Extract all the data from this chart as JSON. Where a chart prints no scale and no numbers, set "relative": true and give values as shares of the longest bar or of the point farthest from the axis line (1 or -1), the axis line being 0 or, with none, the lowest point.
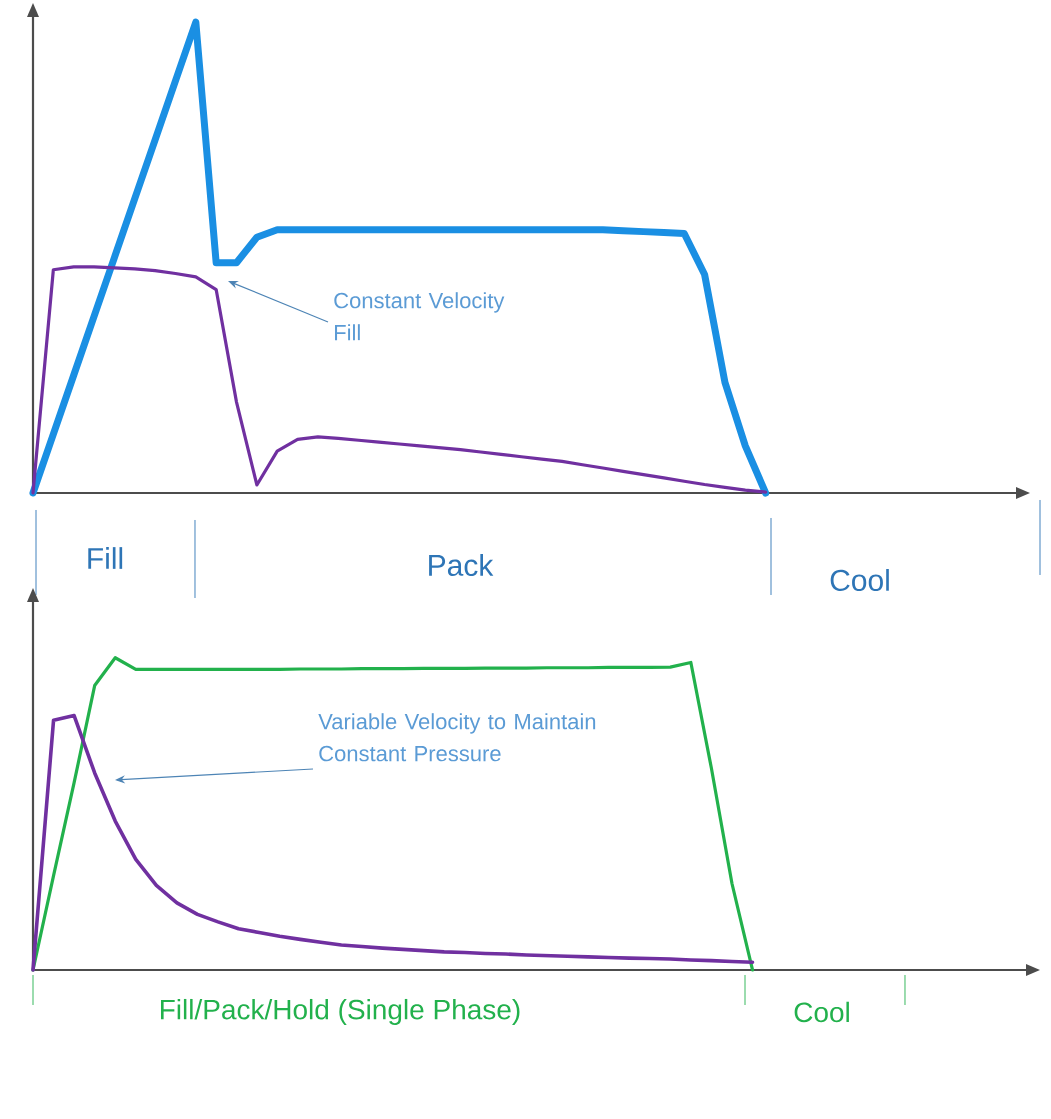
{
  "chart_data": [
    {
      "type": "line",
      "relative": true,
      "categories": [
        null,
        null,
        null,
        null,
        null,
        null,
        null,
        null,
        null,
        null,
        null,
        null,
        null,
        null,
        null,
        null,
        null,
        null,
        null,
        null,
        null,
        null,
        null,
        null,
        null,
        null,
        null,
        null,
        null,
        null,
        null,
        null,
        null,
        null,
        null,
        null,
        null,
        null,
        null,
        null,
        null,
        null,
        null,
        null,
        null,
        null,
        null,
        null,
        null
      ],
      "series": [
        {
          "color": "#1a8fe3",
          "values": [
            0,
            0.125,
            0.25,
            0.375,
            0.5,
            0.625,
            0.75,
            0.875,
            1.0,
            0.489,
            0.489,
            0.543,
            0.559,
            0.559,
            0.559,
            0.559,
            0.559,
            0.559,
            0.559,
            0.559,
            0.559,
            0.559,
            0.559,
            0.559,
            0.559,
            0.559,
            0.559,
            0.559,
            0.559,
            0.557,
            0.555,
            0.553,
            0.551,
            0.464,
            0.235,
            0.1,
            0,
            null,
            null,
            null,
            null,
            null,
            null,
            null,
            null,
            null,
            null,
            null,
            null
          ]
        },
        {
          "color": "#7030a0",
          "values": [
            0,
            0.474,
            0.48,
            0.48,
            0.478,
            0.476,
            0.472,
            0.466,
            0.459,
            0.432,
            0.193,
            0.017,
            0.089,
            0.114,
            0.119,
            0.116,
            0.112,
            0.108,
            0.104,
            0.1,
            0.096,
            0.092,
            0.087,
            0.082,
            0.077,
            0.072,
            0.067,
            0.06,
            0.053,
            0.046,
            0.039,
            0.032,
            0.025,
            0.018,
            0.012,
            0.006,
            0.002,
            null,
            null,
            null,
            null,
            null,
            null,
            null,
            null,
            null,
            null,
            null,
            null
          ]
        }
      ],
      "annotations": [
        "Constant Velocity Fill",
        "Fill",
        "Pack",
        "Cool"
      ]
    },
    {
      "type": "line",
      "relative": true,
      "categories": [
        null,
        null,
        null,
        null,
        null,
        null,
        null,
        null,
        null,
        null,
        null,
        null,
        null,
        null,
        null,
        null,
        null,
        null,
        null,
        null,
        null,
        null,
        null,
        null,
        null,
        null,
        null,
        null,
        null,
        null,
        null,
        null,
        null,
        null,
        null,
        null,
        null,
        null,
        null,
        null,
        null,
        null,
        null,
        null,
        null,
        null,
        null,
        null,
        null
      ],
      "series": [
        {
          "color": "#22b14c",
          "values": [
            0,
            0.302,
            0.6,
            0.911,
            1.0,
            0.963,
            0.963,
            0.963,
            0.963,
            0.963,
            0.963,
            0.963,
            0.963,
            0.964,
            0.964,
            0.964,
            0.965,
            0.965,
            0.965,
            0.966,
            0.966,
            0.966,
            0.967,
            0.967,
            0.967,
            0.968,
            0.968,
            0.968,
            0.969,
            0.969,
            0.969,
            0.97,
            0.985,
            0.646,
            0.277,
            0,
            null,
            null,
            null,
            null,
            null,
            null,
            null,
            null,
            null,
            null,
            null,
            null,
            null
          ]
        },
        {
          "color": "#7030a0",
          "values": [
            0,
            0.8,
            0.815,
            0.631,
            0.477,
            0.354,
            0.271,
            0.215,
            0.178,
            0.154,
            0.132,
            0.12,
            0.108,
            0.098,
            0.089,
            0.08,
            0.075,
            0.07,
            0.066,
            0.062,
            0.058,
            0.056,
            0.053,
            0.051,
            0.048,
            0.046,
            0.044,
            0.042,
            0.04,
            0.038,
            0.037,
            0.035,
            0.032,
            0.03,
            0.027,
            0.025,
            null,
            null,
            null,
            null,
            null,
            null,
            null,
            null,
            null,
            null,
            null,
            null,
            null
          ]
        }
      ],
      "annotations": [
        "Variable Velocity to Maintain Constant Pressure",
        "Fill/Pack/Hold (Single Phase)",
        "Cool"
      ]
    }
  ]
}
